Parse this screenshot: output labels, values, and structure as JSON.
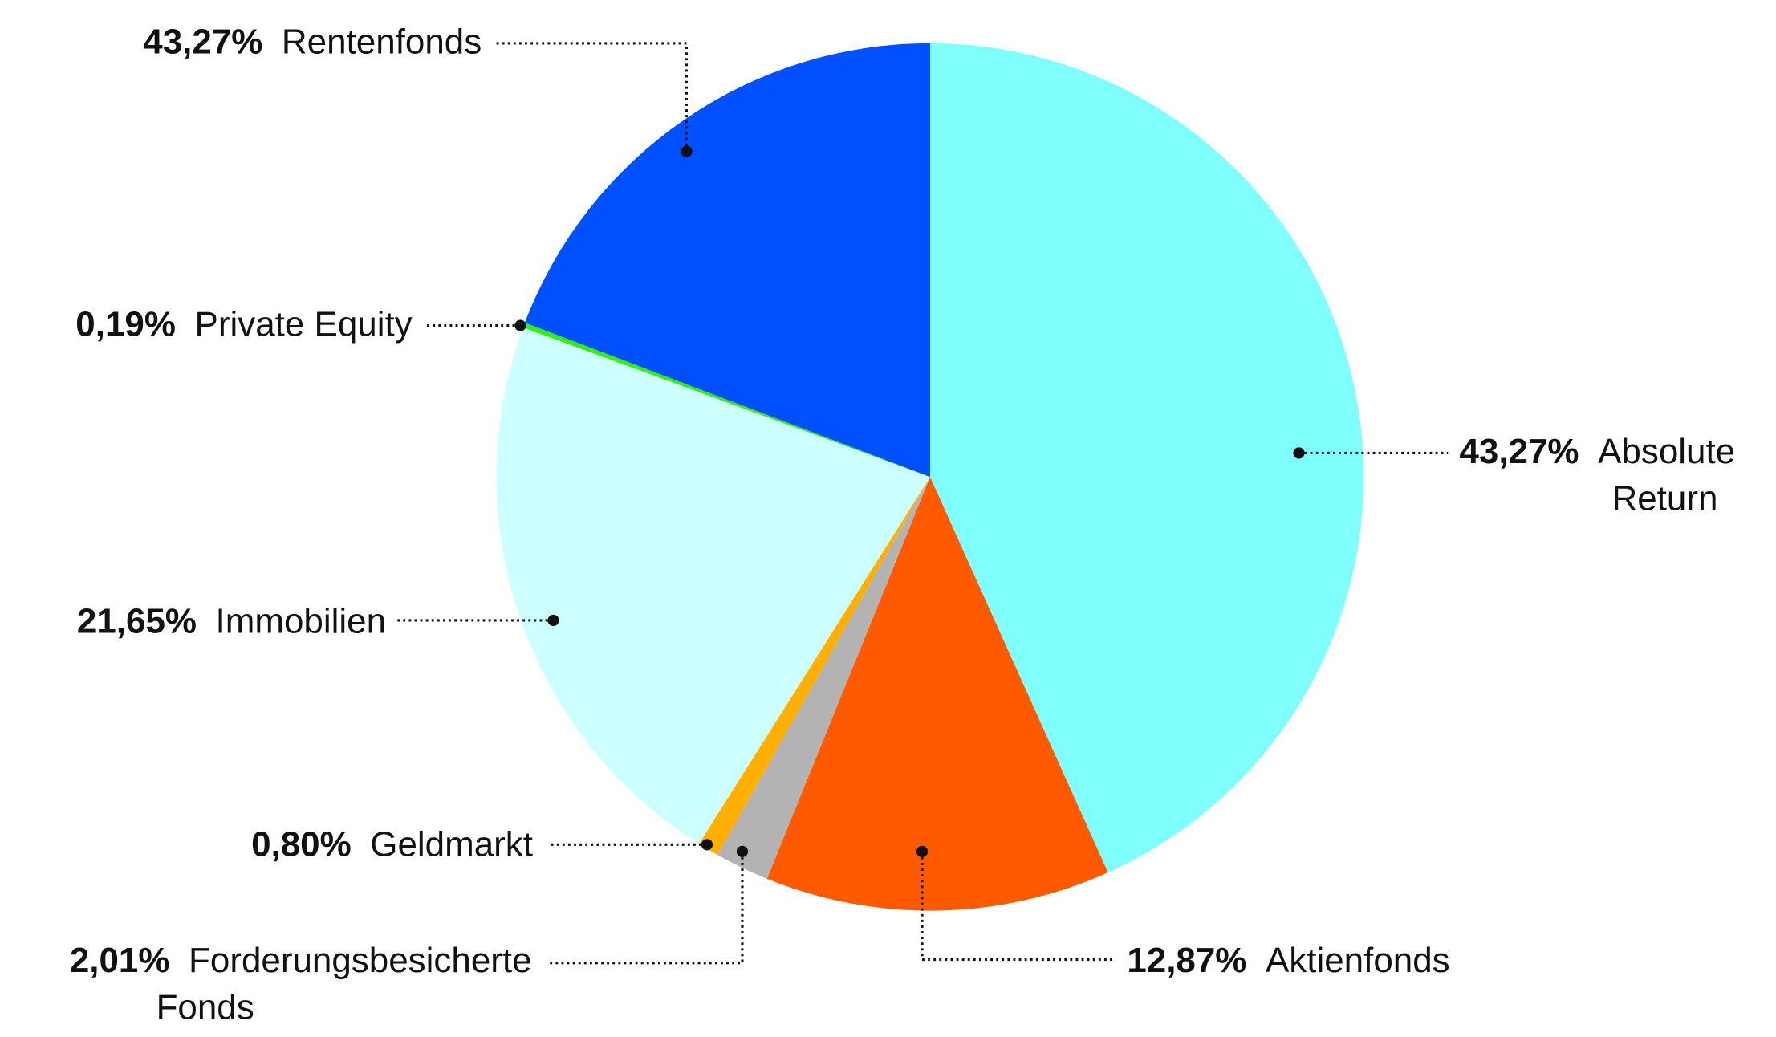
{
  "chart_data": {
    "type": "pie",
    "start": "top",
    "direction": "clockwise",
    "slices": [
      {
        "name": "Absolute Return",
        "name_lines": [
          "Absolute",
          "Return"
        ],
        "label_value": "43,27%",
        "value": 43.27,
        "color": "#80FFFF"
      },
      {
        "name": "Aktienfonds",
        "name_lines": [
          "Aktienfonds"
        ],
        "label_value": "12,87%",
        "value": 12.87,
        "color": "#FF5A00"
      },
      {
        "name": "Forderungsbesicherte Fonds",
        "name_lines": [
          "Forderungsbesicherte",
          "Fonds"
        ],
        "label_value": "2,01%",
        "value": 2.01,
        "color": "#B3B3B3"
      },
      {
        "name": "Geldmarkt",
        "name_lines": [
          "Geldmarkt"
        ],
        "label_value": "0,80%",
        "value": 0.8,
        "color": "#FFB000"
      },
      {
        "name": "Immobilien",
        "name_lines": [
          "Immobilien"
        ],
        "label_value": "21,65%",
        "value": 21.65,
        "color": "#CCFFFF"
      },
      {
        "name": "Private Equity",
        "name_lines": [
          "Private Equity"
        ],
        "label_value": "0,19%",
        "value": 0.19,
        "color": "#33EE11"
      },
      {
        "name": "Rentenfonds",
        "name_lines": [
          "Rentenfonds"
        ],
        "label_value": "43,27%",
        "value": 43.27,
        "color": "#0050FF"
      }
    ]
  }
}
